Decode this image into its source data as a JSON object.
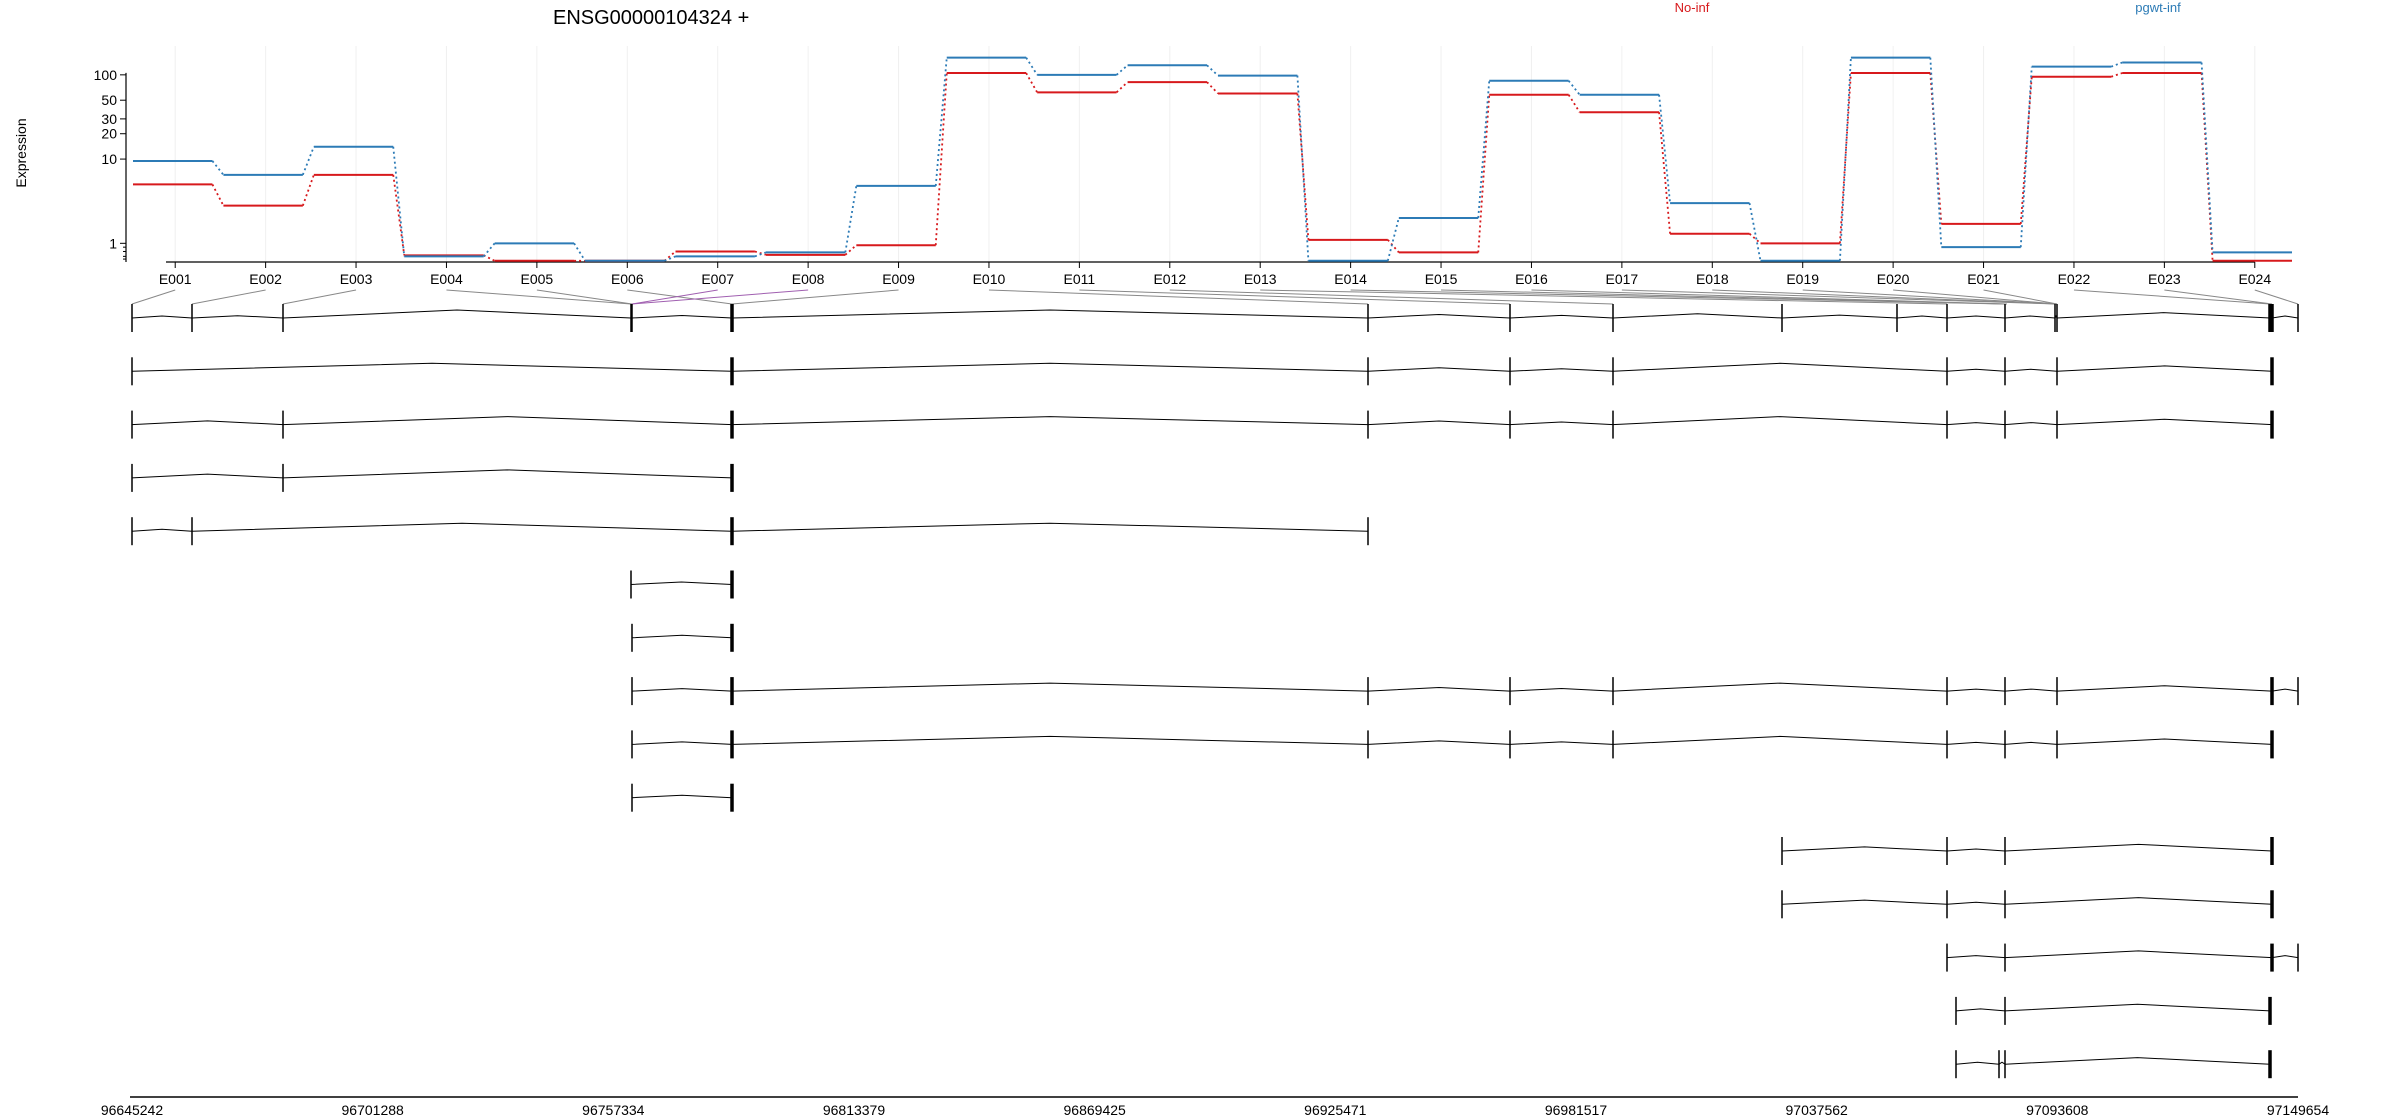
{
  "chart_data": {
    "type": "line",
    "title": "ENSG00000104324 +",
    "ylabel": "Expression",
    "xlabel": "",
    "yscale": "log",
    "ylim": [
      0.6,
      220
    ],
    "yticks": [
      1,
      10,
      20,
      30,
      50,
      100
    ],
    "ytick_labels": [
      "1",
      "10",
      "20",
      "30",
      "50",
      "100"
    ],
    "legend_placement": "top-right",
    "categories": [
      "E001",
      "E002",
      "E003",
      "E004",
      "E005",
      "E006",
      "E007",
      "E008",
      "E009",
      "E010",
      "E011",
      "E012",
      "E013",
      "E014",
      "E015",
      "E016",
      "E017",
      "E018",
      "E019",
      "E020",
      "E021",
      "E022",
      "E023",
      "E024"
    ],
    "series": [
      {
        "name": "No-inf",
        "color": "#d7191c",
        "values": [
          5.0,
          2.8,
          6.5,
          0.72,
          0.62,
          0.62,
          0.8,
          0.73,
          0.95,
          105,
          62,
          82,
          60,
          1.1,
          0.78,
          58,
          36,
          1.3,
          1.0,
          105,
          1.7,
          95,
          105,
          0.62
        ]
      },
      {
        "name": "pgwt-inf",
        "color": "#2c7bb6",
        "values": [
          9.5,
          6.5,
          14,
          0.7,
          1.0,
          0.62,
          0.7,
          0.78,
          4.8,
          160,
          100,
          130,
          98,
          0.62,
          2.0,
          85,
          58,
          3.0,
          0.62,
          160,
          0.9,
          125,
          140,
          0.78
        ]
      }
    ],
    "genomic_axis": {
      "tick_labels": [
        "96645242",
        "96701288",
        "96757334",
        "96813379",
        "96869425",
        "96925471",
        "96981517",
        "97037562",
        "97093608",
        "97149654"
      ],
      "range": [
        96645242,
        97149654
      ]
    },
    "transcripts": [
      [
        1,
        2,
        3,
        5,
        6,
        7,
        10,
        11,
        12,
        13,
        16,
        17,
        20,
        21,
        22,
        23,
        24,
        25
      ],
      [
        1,
        7,
        10,
        11,
        12,
        17,
        20,
        22,
        24
      ],
      [
        1,
        3,
        7,
        10,
        11,
        12,
        17,
        20,
        22,
        24
      ],
      [
        1,
        3,
        7
      ],
      [
        1,
        2,
        7,
        10
      ],
      [
        5,
        7
      ],
      [
        6,
        7
      ],
      [
        6,
        7,
        10,
        11,
        12,
        17,
        20,
        22,
        24,
        25
      ],
      [
        6,
        7,
        10,
        11,
        12,
        17,
        20,
        22,
        24
      ],
      [
        6,
        7
      ],
      [
        13,
        17,
        20,
        24
      ],
      [
        13,
        17,
        20,
        24
      ],
      [
        17,
        20,
        24,
        25
      ],
      [
        18,
        20,
        23
      ],
      [
        18,
        19,
        20,
        23
      ]
    ]
  }
}
